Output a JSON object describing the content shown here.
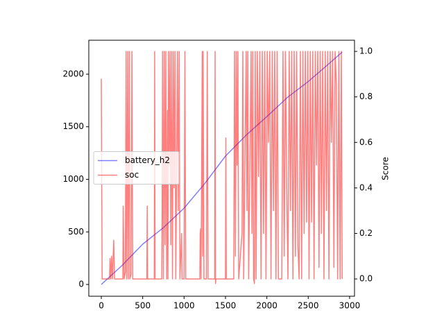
{
  "chart_data": {
    "type": "line",
    "y2label": "Score",
    "xlim": [
      -151,
      3059
    ],
    "ylim": [
      -112,
      2323
    ],
    "y2lim": [
      -0.076,
      1.049
    ],
    "xticks": [
      0,
      500,
      1000,
      1500,
      2000,
      2500,
      3000
    ],
    "yticks": [
      0,
      500,
      1000,
      1500,
      2000
    ],
    "y2ticks": [
      {
        "value": 0,
        "label": "0.0"
      },
      {
        "value": 0.2,
        "label": "0.2"
      },
      {
        "value": 0.4,
        "label": "0.4"
      },
      {
        "value": 0.6,
        "label": "0.6"
      },
      {
        "value": 0.8,
        "label": "0.8"
      },
      {
        "value": 1,
        "label": "1.0"
      }
    ],
    "legend": "center left",
    "series": [
      {
        "name": "battery_h2",
        "color": "#0000ff",
        "x": [
          0,
          250,
          500,
          750,
          1000,
          1250,
          1500,
          1750,
          2000,
          2250,
          2500,
          2750,
          2910
        ],
        "values": [
          0,
          180,
          383,
          540,
          726,
          960,
          1221,
          1420,
          1597,
          1780,
          1930,
          2100,
          2210
        ]
      },
      {
        "name": "soc",
        "color": "#ff0000",
        "axis": "y2",
        "x": [
          0,
          10,
          100,
          105,
          115,
          125,
          135,
          150,
          160,
          260,
          265,
          275,
          290,
          300,
          305,
          320,
          325,
          340,
          345,
          360,
          370,
          380,
          550,
          555,
          560,
          640,
          645,
          650,
          730,
          735,
          740,
          750,
          760,
          770,
          780,
          790,
          800,
          805,
          810,
          820,
          830,
          840,
          850,
          860,
          870,
          880,
          890,
          900,
          920,
          930,
          940,
          950,
          970,
          975,
          1000,
          1010,
          1020,
          1190,
          1195,
          1200,
          1205,
          1220,
          1225,
          1230,
          1240,
          1270,
          1280,
          1290,
          1370,
          1375,
          1380,
          1385,
          1500,
          1505,
          1510,
          1600,
          1610,
          1620,
          1630,
          1640,
          1650,
          1660,
          1700,
          1710,
          1720,
          1750,
          1760,
          1770,
          1780,
          1810,
          1820,
          1830,
          1840,
          1850,
          1860,
          1870,
          1885,
          1900,
          1915,
          1930,
          1945,
          1960,
          1975,
          1990,
          2005,
          2020,
          2035,
          2050,
          2065,
          2080,
          2095,
          2110,
          2125,
          2140,
          2180,
          2195,
          2210,
          2225,
          2240,
          2255,
          2270,
          2285,
          2300,
          2315,
          2330,
          2345,
          2360,
          2375,
          2390,
          2405,
          2420,
          2435,
          2450,
          2465,
          2480,
          2495,
          2510,
          2525,
          2540,
          2555,
          2570,
          2585,
          2600,
          2615,
          2630,
          2645,
          2660,
          2675,
          2690,
          2705,
          2720,
          2735,
          2750,
          2765,
          2780,
          2795,
          2810,
          2825,
          2840,
          2855,
          2870,
          2885,
          2900,
          2910
        ],
        "values": [
          0.88,
          0,
          0,
          0.09,
          0,
          0.1,
          0,
          0.17,
          0,
          0,
          0.32,
          0,
          0.03,
          1,
          0,
          1,
          0,
          1,
          0,
          0.02,
          1,
          0,
          0,
          0.32,
          0,
          0,
          1,
          0,
          0,
          0.3,
          1,
          0,
          1,
          0.15,
          1,
          0,
          0.74,
          0,
          1,
          0.5,
          1,
          0.15,
          1,
          0,
          1,
          0.4,
          1,
          0,
          1,
          0.3,
          1,
          0,
          0.2,
          0,
          0,
          1,
          0,
          0,
          0.2,
          0.22,
          0,
          1,
          0.1,
          1,
          0,
          0,
          1,
          0,
          0,
          1,
          -0.02,
          0,
          0,
          0.62,
          0,
          0,
          1,
          0.1,
          1,
          0.5,
          1,
          0,
          0.2,
          1,
          0,
          1,
          0.3,
          1,
          0,
          1,
          0.2,
          1,
          0,
          -0.02,
          1,
          0,
          1,
          0.45,
          1,
          0,
          1,
          0.2,
          1,
          0,
          1,
          0.6,
          1,
          0,
          1,
          0.3,
          1,
          0,
          1,
          0,
          0,
          1,
          0.1,
          1,
          0.4,
          0,
          1,
          0.3,
          1,
          0,
          1,
          0.1,
          1,
          0.15,
          0,
          1,
          0,
          1,
          0.2,
          1,
          0.25,
          1,
          0,
          1,
          0.25,
          1,
          0,
          1,
          0.5,
          1,
          0.05,
          1,
          0.2,
          1,
          0,
          1,
          0.3,
          1,
          0,
          1,
          0.6,
          1,
          0.05,
          1,
          0.85,
          0,
          1,
          0,
          1,
          0
        ]
      }
    ]
  }
}
